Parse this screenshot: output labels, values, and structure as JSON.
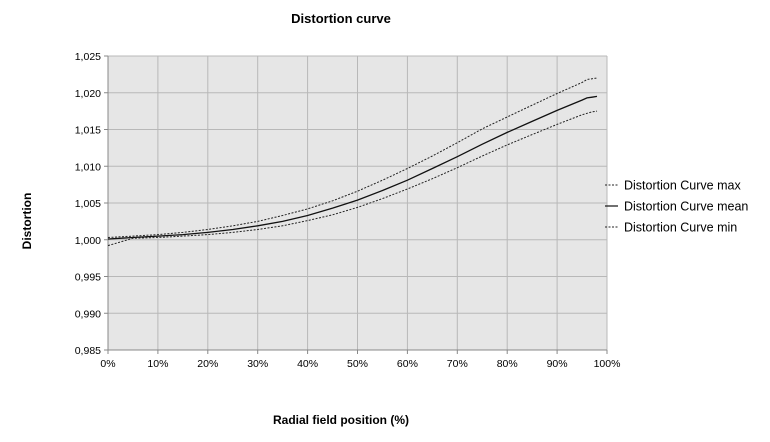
{
  "chart_data": {
    "type": "line",
    "title": "Distortion curve",
    "xlabel": "Radial field position (%)",
    "ylabel": "Distortion",
    "xlim": [
      0,
      100
    ],
    "ylim": [
      0.985,
      1.025
    ],
    "x_ticks": [
      0,
      10,
      20,
      30,
      40,
      50,
      60,
      70,
      80,
      90,
      100
    ],
    "x_tick_labels": [
      "0%",
      "10%",
      "20%",
      "30%",
      "40%",
      "50%",
      "60%",
      "70%",
      "80%",
      "90%",
      "100%"
    ],
    "y_ticks": [
      0.985,
      0.99,
      0.995,
      1.0,
      1.005,
      1.01,
      1.015,
      1.02,
      1.025
    ],
    "y_tick_labels": [
      "0,985",
      "0,990",
      "0,995",
      "1,000",
      "1,005",
      "1,010",
      "1,015",
      "1,020",
      "1,025"
    ],
    "grid": true,
    "legend_position": "right",
    "plot_background": "#e6e6e6",
    "grid_color": "#b8b8b8",
    "x": [
      0,
      5,
      10,
      15,
      20,
      25,
      30,
      35,
      40,
      45,
      50,
      55,
      60,
      65,
      70,
      75,
      80,
      85,
      90,
      95,
      96,
      97,
      98
    ],
    "series": [
      {
        "name": "Distortion Curve max",
        "style": "dotted",
        "values": [
          1.0003,
          1.0005,
          1.0007,
          1.001,
          1.0014,
          1.0019,
          1.0025,
          1.0033,
          1.0042,
          1.0053,
          1.0066,
          1.0081,
          1.0097,
          1.0114,
          1.0132,
          1.0151,
          1.0167,
          1.0183,
          1.0199,
          1.0214,
          1.0218,
          1.0219,
          1.022
        ]
      },
      {
        "name": "Distortion Curve mean",
        "style": "solid",
        "values": [
          1.0001,
          1.0003,
          1.0005,
          1.0007,
          1.001,
          1.0014,
          1.0019,
          1.0025,
          1.0033,
          1.0043,
          1.0054,
          1.0067,
          1.0081,
          1.0097,
          1.0113,
          1.013,
          1.0146,
          1.0161,
          1.0176,
          1.019,
          1.0193,
          1.0194,
          1.0195
        ]
      },
      {
        "name": "Distortion Curve min",
        "style": "dotted",
        "values": [
          0.9992,
          1.0002,
          1.0003,
          1.0005,
          1.0007,
          1.001,
          1.0014,
          1.0019,
          1.0026,
          1.0034,
          1.0044,
          1.0056,
          1.0069,
          1.0083,
          1.0098,
          1.0114,
          1.0129,
          1.0143,
          1.0157,
          1.017,
          1.0172,
          1.0174,
          1.0175
        ]
      }
    ]
  }
}
